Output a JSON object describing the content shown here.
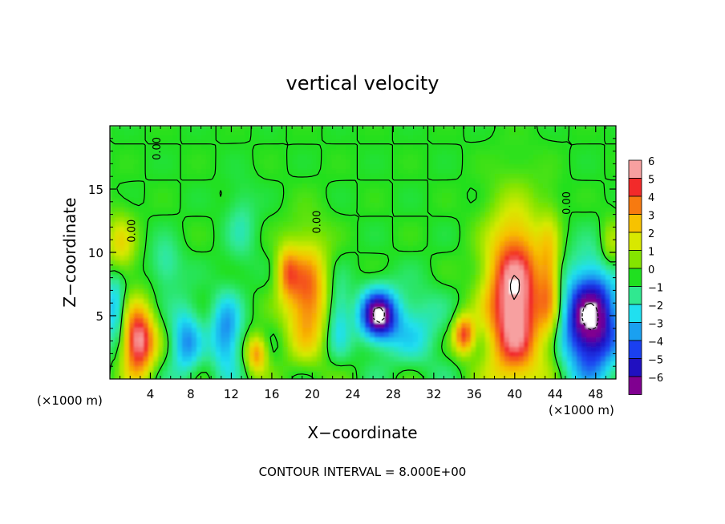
{
  "chart_data": {
    "type": "heatmap",
    "title": "vertical velocity",
    "xlabel": "X−coordinate",
    "ylabel": "Z−coordinate",
    "x_unit_left": "(×1000 m)",
    "x_unit_right": "(×1000 m)",
    "footer": "CONTOUR INTERVAL = 8.000E+00",
    "xlim": [
      0,
      50
    ],
    "ylim": [
      0,
      20
    ],
    "x_ticks": [
      4,
      8,
      12,
      16,
      20,
      24,
      28,
      32,
      36,
      40,
      44,
      48
    ],
    "y_ticks": [
      5,
      10,
      15
    ],
    "contour_labels": [
      {
        "text": "0.00",
        "x": 5,
        "y": 18.2
      },
      {
        "text": "0.00",
        "x": 2.5,
        "y": 11.7
      },
      {
        "text": "0.00",
        "x": 20.8,
        "y": 12.4
      },
      {
        "text": "0.00",
        "x": 45.5,
        "y": 13.9
      }
    ],
    "colorbar": {
      "levels": [
        "6",
        "5",
        "4",
        "3",
        "2",
        "1",
        "0",
        "−1",
        "−2",
        "−3",
        "−4",
        "−5",
        "−6"
      ],
      "colors": [
        "#f7a0a0",
        "#f22a2a",
        "#f77a10",
        "#f7c200",
        "#d8e800",
        "#84e400",
        "#20e020",
        "#30e890",
        "#20e0f0",
        "#1aa0f0",
        "#1a40f0",
        "#2010c0",
        "#800090"
      ]
    },
    "features": [
      {
        "x": 40.0,
        "z": 6.0,
        "rx": 2.8,
        "rz": 6.5,
        "w": 7
      },
      {
        "x": 47.5,
        "z": 4.5,
        "rx": 2.8,
        "rz": 4.2,
        "w": -7
      },
      {
        "x": 26.5,
        "z": 5.0,
        "rx": 1.8,
        "rz": 2.0,
        "w": -6.5
      },
      {
        "x": 2.8,
        "z": 3.0,
        "rx": 1.6,
        "rz": 2.8,
        "w": 6.5
      },
      {
        "x": 19.5,
        "z": 6.5,
        "rx": 2.2,
        "rz": 4.5,
        "w": 4.5
      },
      {
        "x": 35.0,
        "z": 3.5,
        "rx": 1.0,
        "rz": 1.5,
        "w": 5
      },
      {
        "x": 14.5,
        "z": 2.0,
        "rx": 1.0,
        "rz": 1.5,
        "w": 4
      },
      {
        "x": 17.5,
        "z": 8.5,
        "rx": 1.0,
        "rz": 2.0,
        "w": 3
      },
      {
        "x": 11.5,
        "z": 3.5,
        "rx": 1.5,
        "rz": 3.0,
        "w": -3.5
      },
      {
        "x": 7.5,
        "z": 3.0,
        "rx": 1.5,
        "rz": 3.0,
        "w": -3
      },
      {
        "x": 22.5,
        "z": 5.0,
        "rx": 1.2,
        "rz": 3.0,
        "w": -2.5
      },
      {
        "x": 0.5,
        "z": 5.5,
        "rx": 1.0,
        "rz": 3.0,
        "w": -3
      },
      {
        "x": 30.0,
        "z": 4.0,
        "rx": 3.0,
        "rz": 3.0,
        "w": -1.8
      },
      {
        "x": 5.5,
        "z": 9.0,
        "rx": 1.5,
        "rz": 2.0,
        "w": -1.5
      },
      {
        "x": 43.5,
        "z": 7.5,
        "rx": 1.0,
        "rz": 5.0,
        "w": 3
      },
      {
        "x": 1.0,
        "z": 10.5,
        "rx": 1.5,
        "rz": 2.5,
        "w": 2.5
      },
      {
        "x": 49.5,
        "z": 10.5,
        "rx": 1.0,
        "rz": 2.0,
        "w": 2
      },
      {
        "x": 13.0,
        "z": 12.0,
        "rx": 1.5,
        "rz": 3.0,
        "w": -1.2
      }
    ]
  }
}
